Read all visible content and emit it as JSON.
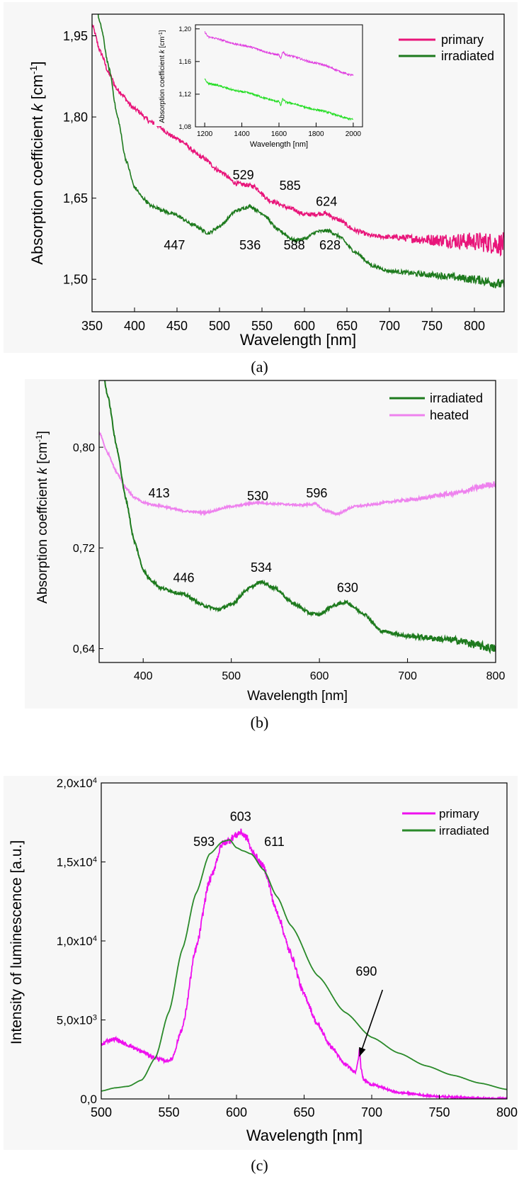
{
  "colors": {
    "primary": "#e8157a",
    "irradiated": "#1d7a1d",
    "irradiated_c": "#2a8a2a",
    "heated": "#ee82ee",
    "primary_c": "#ee10ee",
    "inset_top": "#e040e0",
    "inset_bottom": "#22dd22"
  },
  "panels": [
    {
      "caption": "(a)",
      "chart_data": {
        "type": "line",
        "xlabel": "Wavelength [nm]",
        "ylabel": "Absorption coefficient k [cm-1]",
        "xlim": [
          350,
          835
        ],
        "ylim": [
          1.44,
          1.99
        ],
        "xticks": [
          350,
          400,
          450,
          500,
          550,
          600,
          650,
          700,
          750,
          800
        ],
        "xtick_labels": [
          "350",
          "400",
          "450",
          "500",
          "550",
          "600",
          "650",
          "700",
          "750",
          "800"
        ],
        "yticks": [
          1.5,
          1.65,
          1.8,
          1.95
        ],
        "ytick_labels": [
          "1,50",
          "1,65",
          "1,80",
          "1,95"
        ],
        "legend_position": "top-right",
        "series": [
          {
            "name": "primary",
            "color_key": "primary",
            "noise": 0.004,
            "x": [
              350,
              360,
              370,
              380,
              400,
              420,
              450,
              480,
              500,
              520,
              529,
              540,
              560,
              585,
              600,
              610,
              624,
              640,
              660,
              680,
              700,
              750,
              800,
              835
            ],
            "y": [
              1.97,
              1.92,
              1.88,
              1.85,
              1.815,
              1.79,
              1.76,
              1.725,
              1.7,
              1.677,
              1.675,
              1.672,
              1.645,
              1.63,
              1.62,
              1.62,
              1.622,
              1.61,
              1.59,
              1.58,
              1.578,
              1.573,
              1.57,
              1.565
            ]
          },
          {
            "name": "irradiated",
            "color_key": "irradiated",
            "noise": 0.003,
            "x": [
              350,
              360,
              370,
              380,
              390,
              400,
              410,
              420,
              447,
              470,
              487,
              500,
              520,
              536,
              550,
              570,
              588,
              600,
              615,
              628,
              640,
              660,
              680,
              700,
              750,
              800,
              835
            ],
            "y": [
              2.05,
              1.97,
              1.89,
              1.8,
              1.72,
              1.67,
              1.65,
              1.635,
              1.62,
              1.6,
              1.585,
              1.598,
              1.627,
              1.635,
              1.622,
              1.59,
              1.572,
              1.575,
              1.588,
              1.59,
              1.58,
              1.55,
              1.525,
              1.515,
              1.508,
              1.5,
              1.49
            ]
          }
        ],
        "annotations": [
          {
            "text": "529",
            "x": 528,
            "y": 1.685
          },
          {
            "text": "585",
            "x": 583,
            "y": 1.665
          },
          {
            "text": "624",
            "x": 626,
            "y": 1.636
          },
          {
            "text": "447",
            "x": 447,
            "y": 1.555
          },
          {
            "text": "536",
            "x": 536,
            "y": 1.555
          },
          {
            "text": "588",
            "x": 588,
            "y": 1.555
          },
          {
            "text": "628",
            "x": 630,
            "y": 1.555
          }
        ],
        "inset": {
          "xlabel": "Wavelength [nm]",
          "ylabel": "Absorption coefficient k [cm-1]",
          "xlim": [
            1150,
            2050
          ],
          "ylim": [
            1.08,
            1.205
          ],
          "xticks": [
            1200,
            1400,
            1600,
            1800,
            2000
          ],
          "xtick_labels": [
            "1200",
            "1400",
            "1600",
            "1800",
            "2000"
          ],
          "yticks": [
            1.08,
            1.12,
            1.16,
            1.2
          ],
          "ytick_labels": [
            "1,08",
            "1,12",
            "1,16",
            "1,20"
          ],
          "series": [
            {
              "color_key": "inset_top",
              "noise": 0.0012,
              "x": [
                1200,
                1220,
                1400,
                1600,
                1610,
                1620,
                1640,
                1800,
                2000
              ],
              "y": [
                1.196,
                1.19,
                1.18,
                1.168,
                1.163,
                1.172,
                1.168,
                1.158,
                1.143
              ]
            },
            {
              "color_key": "inset_bottom",
              "noise": 0.0012,
              "x": [
                1200,
                1220,
                1400,
                1600,
                1610,
                1620,
                1640,
                1800,
                2000
              ],
              "y": [
                1.138,
                1.133,
                1.123,
                1.111,
                1.106,
                1.114,
                1.11,
                1.101,
                1.089
              ]
            }
          ]
        }
      }
    },
    {
      "caption": "(b)",
      "chart_data": {
        "type": "line",
        "xlabel": "Wavelength [nm]",
        "ylabel": "Absorption coeffcient k [cm-1]",
        "xlim": [
          350,
          800
        ],
        "ylim": [
          0.629,
          0.853
        ],
        "xticks": [
          400,
          500,
          600,
          700,
          800
        ],
        "xtick_labels": [
          "400",
          "500",
          "600",
          "700",
          "800"
        ],
        "yticks": [
          0.64,
          0.72,
          0.8
        ],
        "ytick_labels": [
          "0,64",
          "0,72",
          "0,80"
        ],
        "legend_position": "top-right",
        "series": [
          {
            "name": "irradiated",
            "color_key": "irradiated",
            "noise": 0.0012,
            "x": [
              350,
              360,
              370,
              380,
              390,
              400,
              405,
              410,
              420,
              446,
              470,
              485,
              500,
              520,
              534,
              550,
              570,
              590,
              600,
              615,
              630,
              650,
              670,
              700,
              750,
              800
            ],
            "y": [
              0.88,
              0.84,
              0.8,
              0.76,
              0.725,
              0.703,
              0.697,
              0.694,
              0.688,
              0.683,
              0.674,
              0.671,
              0.675,
              0.688,
              0.693,
              0.688,
              0.676,
              0.668,
              0.667,
              0.674,
              0.677,
              0.668,
              0.654,
              0.65,
              0.647,
              0.64
            ]
          },
          {
            "name": "heated",
            "color_key": "heated",
            "noise": 0.0008,
            "x": [
              350,
              360,
              370,
              380,
              390,
              400,
              413,
              450,
              470,
              500,
              530,
              550,
              580,
              596,
              605,
              620,
              640,
              700,
              750,
              800
            ],
            "y": [
              0.812,
              0.795,
              0.78,
              0.768,
              0.76,
              0.756,
              0.754,
              0.749,
              0.748,
              0.753,
              0.756,
              0.755,
              0.754,
              0.755,
              0.75,
              0.747,
              0.753,
              0.758,
              0.763,
              0.771
            ]
          }
        ],
        "annotations": [
          {
            "text": "413",
            "x": 418,
            "y": 0.76
          },
          {
            "text": "530",
            "x": 530,
            "y": 0.758
          },
          {
            "text": "596",
            "x": 597,
            "y": 0.76
          },
          {
            "text": "446",
            "x": 446,
            "y": 0.693
          },
          {
            "text": "534",
            "x": 534,
            "y": 0.701
          },
          {
            "text": "630",
            "x": 632,
            "y": 0.685
          }
        ]
      }
    },
    {
      "caption": "(c)",
      "chart_data": {
        "type": "line",
        "xlabel": "Wavelength [nm]",
        "ylabel": "Intensity of luminescence [a.u.]",
        "xlim": [
          500,
          800
        ],
        "ylim": [
          0,
          20000
        ],
        "xticks": [
          500,
          550,
          600,
          650,
          700,
          750,
          800
        ],
        "xtick_labels": [
          "500",
          "550",
          "600",
          "650",
          "700",
          "750",
          "800"
        ],
        "yticks": [
          0,
          5000,
          10000,
          15000,
          20000
        ],
        "ytick_labels": [
          {
            "m": "0,0",
            "e": ""
          },
          {
            "m": "5,0x10",
            "e": "3"
          },
          {
            "m": "1,0x10",
            "e": "4"
          },
          {
            "m": "1,5x10",
            "e": "4"
          },
          {
            "m": "2,0x10",
            "e": "4"
          }
        ],
        "legend_position": "top-right",
        "series": [
          {
            "name": "primary",
            "color_key": "primary_c",
            "noise": 170,
            "x": [
              500,
              505,
              510,
              520,
              530,
              540,
              548,
              552,
              560,
              570,
              580,
              590,
              593,
              600,
              603,
              608,
              611,
              620,
              630,
              640,
              650,
              660,
              670,
              680,
              688,
              690,
              691,
              692,
              694,
              700,
              720,
              750,
              780,
              800
            ],
            "y": [
              3400,
              3700,
              3800,
              3400,
              3000,
              2600,
              2400,
              2500,
              4500,
              9500,
              13800,
              16200,
              16300,
              16700,
              16900,
              16500,
              15700,
              14700,
              11800,
              9200,
              6600,
              4700,
              3300,
              2200,
              1700,
              2500,
              3100,
              2000,
              1200,
              900,
              400,
              150,
              50,
              30
            ]
          },
          {
            "name": "irradiated",
            "color_key": "irradiated_c",
            "noise": 0,
            "x": [
              500,
              510,
              520,
              530,
              540,
              550,
              560,
              570,
              580,
              590,
              595,
              600,
              605,
              611,
              620,
              630,
              640,
              660,
              680,
              700,
              720,
              740,
              760,
              780,
              800
            ],
            "y": [
              500,
              700,
              800,
              1200,
              2600,
              5500,
              9500,
              13000,
              15500,
              16300,
              16400,
              15900,
              15700,
              15500,
              14500,
              12800,
              11000,
              7800,
              5500,
              3900,
              2900,
              2100,
              1500,
              1000,
              600
            ]
          }
        ],
        "annotations": [
          {
            "text": "603",
            "x": 603,
            "y": 17600
          },
          {
            "text": "593",
            "x": 576,
            "y": 16000
          },
          {
            "text": "611",
            "x": 628,
            "y": 16000
          },
          {
            "text": "690",
            "x": 696,
            "y": 7800
          }
        ],
        "arrow": {
          "from": [
            708,
            6900
          ],
          "to": [
            691,
            2700
          ]
        }
      }
    }
  ]
}
